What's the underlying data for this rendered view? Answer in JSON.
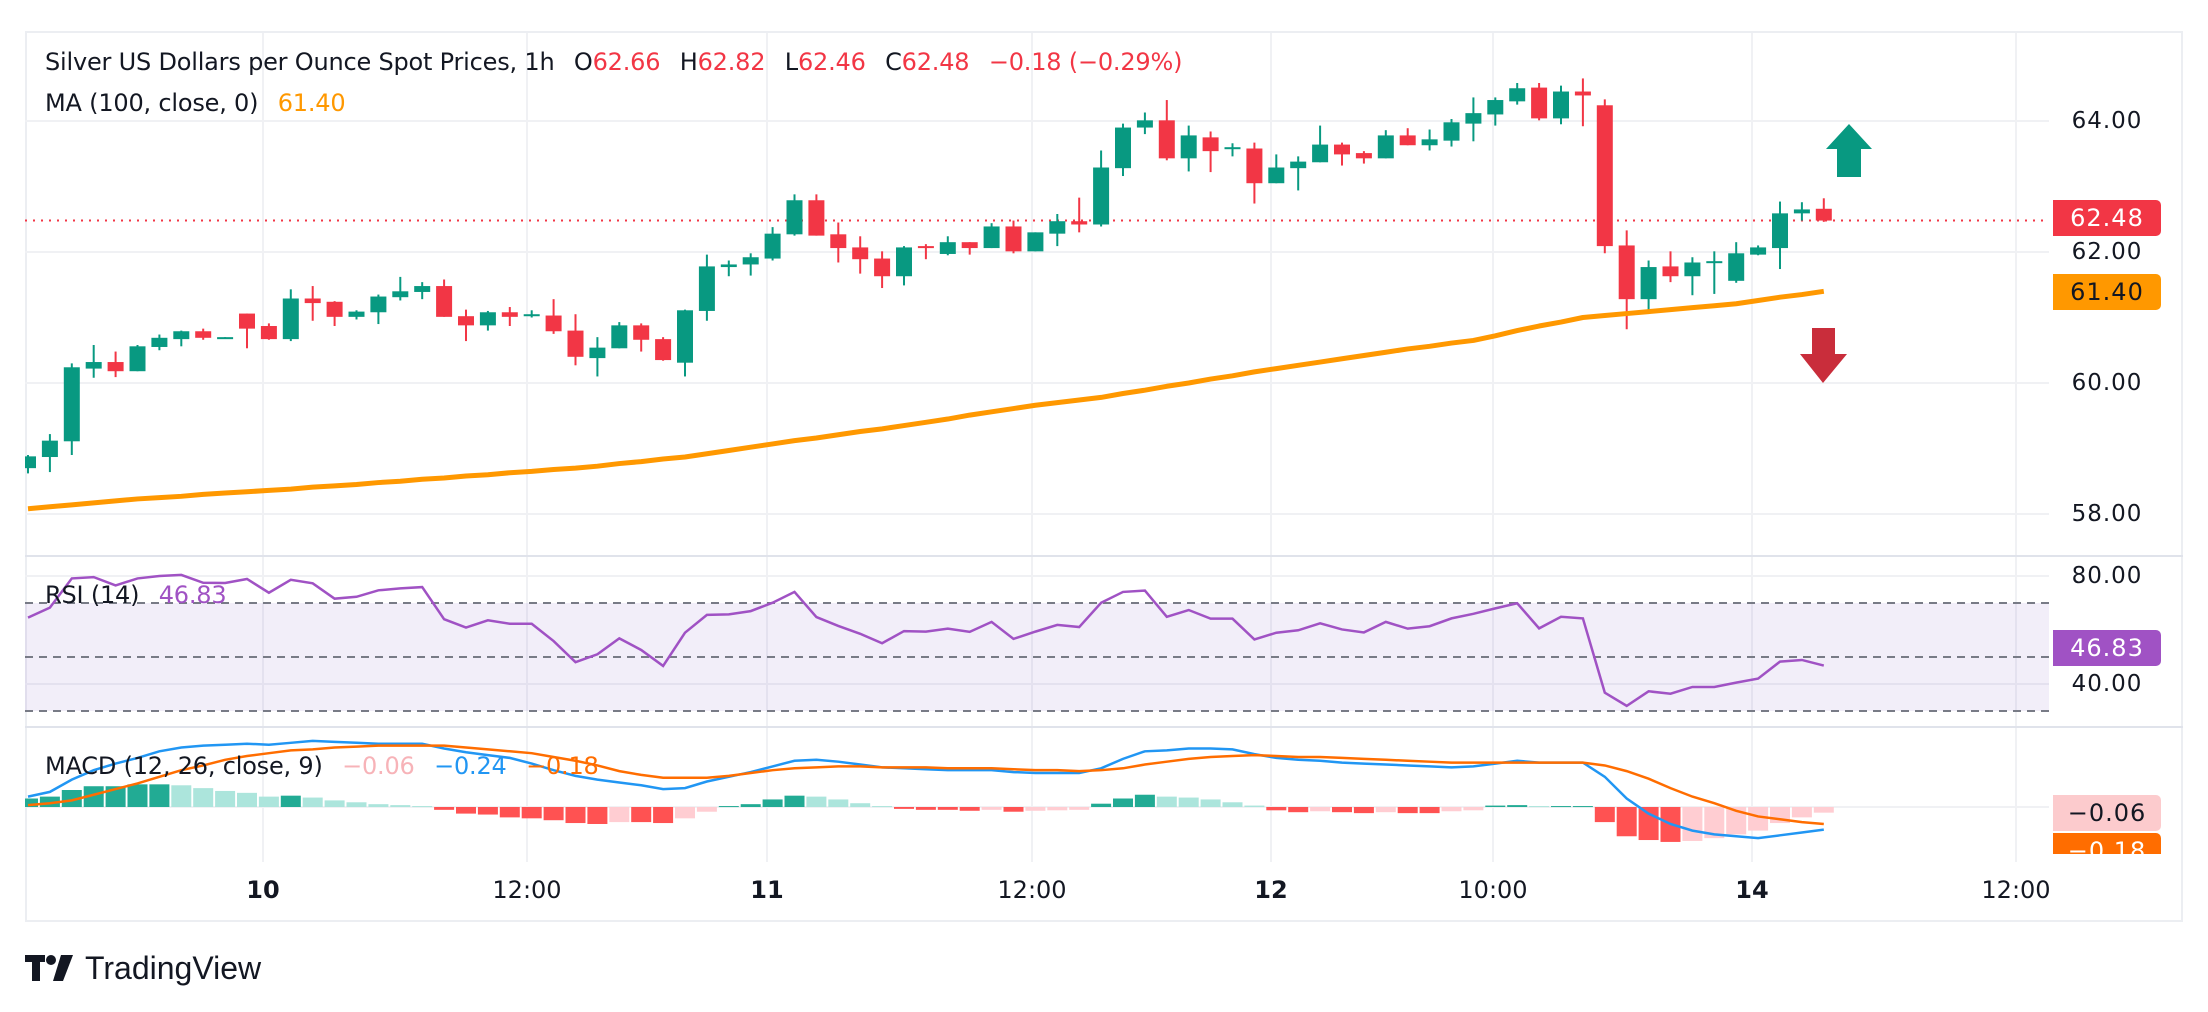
{
  "header": {
    "title": "Silver US Dollars per Ounce Spot Prices, 1h",
    "o_label": "O",
    "o": "62.66",
    "h_label": "H",
    "h": "62.82",
    "l_label": "L",
    "l": "62.46",
    "c_label": "C",
    "c": "62.48",
    "change": "−0.18 (−0.29%)"
  },
  "ma_legend": {
    "label": "MA (100, close, 0)",
    "value": "61.40"
  },
  "rsi_legend": {
    "label": "RSI (14)",
    "value": "46.83"
  },
  "macd_legend": {
    "label": "MACD (12, 26, close, 9)",
    "hist": "−0.06",
    "macd": "−0.24",
    "signal": "−0.18"
  },
  "price_axis": {
    "ticks": [
      "64.00",
      "62.00",
      "60.00",
      "58.00"
    ],
    "last_price": "62.48",
    "ma_value": "61.40"
  },
  "rsi_axis": {
    "ticks": [
      "80.00",
      "40.00"
    ],
    "value": "46.83"
  },
  "macd_axis": {
    "hist_value": "−0.06",
    "signal_value": "−0.18"
  },
  "time_axis": {
    "labels": [
      "10",
      "12:00",
      "11",
      "12:00",
      "12",
      "10:00",
      "14",
      "12:00"
    ]
  },
  "logo": {
    "text": "TradingView"
  },
  "icons": {
    "up_arrow": "up-arrow-icon",
    "down_arrow": "down-arrow-icon"
  },
  "colors": {
    "up": "#089981",
    "down": "#f23645",
    "ma": "#ff9800",
    "rsi": "#a052c4",
    "macd": "#2196f3",
    "signal": "#ff6d00",
    "hist_up_strong": "#22ab94",
    "hist_up_weak": "#ace5dc",
    "hist_down_strong": "#ff5252",
    "hist_down_weak": "#ffcdd2",
    "arrow_up": "#089981",
    "arrow_down": "#c92d3b"
  },
  "chart_data": [
    {
      "type": "candlestick",
      "title": "Silver US Dollars per Ounce Spot Prices, 1h",
      "ylim": [
        57.4,
        65.6
      ],
      "yticks": [
        64,
        62,
        60,
        58
      ],
      "grid": true,
      "ohlc": [
        [
          58.7,
          58.9,
          58.62,
          58.88
        ],
        [
          58.87,
          59.22,
          58.64,
          59.12
        ],
        [
          59.11,
          60.3,
          58.9,
          60.24
        ],
        [
          60.22,
          60.58,
          60.08,
          60.32
        ],
        [
          60.32,
          60.48,
          60.09,
          60.18
        ],
        [
          60.18,
          60.58,
          60.18,
          60.56
        ],
        [
          60.55,
          60.74,
          60.5,
          60.69
        ],
        [
          60.67,
          60.8,
          60.56,
          60.79
        ],
        [
          60.79,
          60.83,
          60.66,
          60.69
        ],
        [
          60.69,
          60.7,
          60.68,
          60.7
        ],
        [
          61.06,
          61.06,
          60.53,
          60.83
        ],
        [
          60.87,
          60.91,
          60.66,
          60.67
        ],
        [
          60.67,
          61.43,
          60.64,
          61.29
        ],
        [
          61.29,
          61.48,
          60.95,
          61.22
        ],
        [
          61.24,
          61.25,
          60.87,
          61.01
        ],
        [
          61.01,
          61.11,
          60.97,
          61.09
        ],
        [
          61.08,
          61.35,
          60.9,
          61.32
        ],
        [
          61.31,
          61.62,
          61.26,
          61.4
        ],
        [
          61.39,
          61.54,
          61.28,
          61.48
        ],
        [
          61.48,
          61.58,
          61.01,
          61.01
        ],
        [
          61.02,
          61.12,
          60.64,
          60.88
        ],
        [
          60.88,
          61.1,
          60.8,
          61.08
        ],
        [
          61.08,
          61.16,
          60.87,
          61.01
        ],
        [
          61.03,
          61.11,
          61.0,
          61.05
        ],
        [
          61.03,
          61.28,
          60.75,
          60.79
        ],
        [
          60.8,
          61.05,
          60.27,
          60.4
        ],
        [
          60.38,
          60.7,
          60.1,
          60.54
        ],
        [
          60.53,
          60.93,
          60.53,
          60.88
        ],
        [
          60.88,
          60.91,
          60.48,
          60.66
        ],
        [
          60.67,
          60.7,
          60.34,
          60.35
        ],
        [
          60.31,
          61.12,
          60.1,
          61.11
        ],
        [
          61.1,
          61.96,
          60.95,
          61.78
        ],
        [
          61.77,
          61.87,
          61.63,
          61.81
        ],
        [
          61.81,
          61.98,
          61.64,
          61.92
        ],
        [
          61.9,
          62.38,
          61.87,
          62.28
        ],
        [
          62.27,
          62.88,
          62.25,
          62.79
        ],
        [
          62.79,
          62.88,
          62.25,
          62.25
        ],
        [
          62.27,
          62.45,
          61.84,
          62.06
        ],
        [
          62.07,
          62.24,
          61.67,
          61.89
        ],
        [
          61.9,
          62.01,
          61.45,
          61.63
        ],
        [
          61.63,
          62.09,
          61.49,
          62.07
        ],
        [
          62.09,
          62.12,
          61.89,
          62.06
        ],
        [
          61.97,
          62.24,
          61.95,
          62.15
        ],
        [
          62.15,
          62.15,
          61.96,
          62.06
        ],
        [
          62.06,
          62.44,
          62.06,
          62.39
        ],
        [
          62.39,
          62.48,
          61.98,
          62.01
        ],
        [
          62.01,
          62.3,
          62.01,
          62.3
        ],
        [
          62.28,
          62.58,
          62.09,
          62.47
        ],
        [
          62.47,
          62.83,
          62.3,
          62.42
        ],
        [
          62.42,
          63.55,
          62.39,
          63.29
        ],
        [
          63.28,
          63.96,
          63.16,
          63.9
        ],
        [
          63.9,
          64.13,
          63.8,
          64.01
        ],
        [
          64.01,
          64.32,
          63.4,
          63.43
        ],
        [
          63.43,
          63.93,
          63.23,
          63.78
        ],
        [
          63.75,
          63.84,
          63.22,
          63.54
        ],
        [
          63.58,
          63.66,
          63.46,
          63.6
        ],
        [
          63.58,
          63.67,
          62.74,
          63.05
        ],
        [
          63.05,
          63.49,
          63.05,
          63.29
        ],
        [
          63.28,
          63.46,
          62.94,
          63.38
        ],
        [
          63.37,
          63.93,
          63.37,
          63.64
        ],
        [
          63.64,
          63.67,
          63.32,
          63.49
        ],
        [
          63.51,
          63.54,
          63.35,
          63.43
        ],
        [
          63.43,
          63.86,
          63.43,
          63.78
        ],
        [
          63.78,
          63.89,
          63.63,
          63.63
        ],
        [
          63.63,
          63.87,
          63.55,
          63.72
        ],
        [
          63.7,
          64.03,
          63.61,
          63.98
        ],
        [
          63.96,
          64.36,
          63.69,
          64.12
        ],
        [
          64.1,
          64.36,
          63.93,
          64.32
        ],
        [
          64.3,
          64.58,
          64.25,
          64.5
        ],
        [
          64.51,
          64.58,
          64.01,
          64.04
        ],
        [
          64.04,
          64.54,
          63.95,
          64.45
        ],
        [
          64.45,
          64.65,
          63.92,
          64.39
        ],
        [
          64.24,
          64.33,
          61.98,
          62.09
        ],
        [
          62.1,
          62.33,
          60.82,
          61.28
        ],
        [
          61.28,
          61.87,
          61.07,
          61.77
        ],
        [
          61.78,
          62.01,
          61.54,
          61.63
        ],
        [
          61.63,
          61.92,
          61.34,
          61.84
        ],
        [
          61.85,
          62.01,
          61.36,
          61.86
        ],
        [
          61.56,
          62.15,
          61.53,
          61.98
        ],
        [
          61.96,
          62.1,
          61.95,
          62.07
        ],
        [
          62.06,
          62.77,
          61.74,
          62.59
        ],
        [
          62.59,
          62.76,
          62.48,
          62.65
        ],
        [
          62.66,
          62.82,
          62.46,
          62.48
        ]
      ],
      "ma100": [
        58.08,
        58.11,
        58.14,
        58.17,
        58.2,
        58.23,
        58.25,
        58.27,
        58.3,
        58.32,
        58.34,
        58.36,
        58.38,
        58.41,
        58.43,
        58.45,
        58.48,
        58.5,
        58.53,
        58.55,
        58.58,
        58.6,
        58.63,
        58.65,
        58.68,
        58.7,
        58.73,
        58.77,
        58.8,
        58.84,
        58.87,
        58.92,
        58.97,
        59.02,
        59.07,
        59.12,
        59.16,
        59.21,
        59.26,
        59.3,
        59.35,
        59.4,
        59.45,
        59.51,
        59.56,
        59.61,
        59.66,
        59.7,
        59.74,
        59.78,
        59.84,
        59.89,
        59.95,
        60.0,
        60.06,
        60.11,
        60.17,
        60.22,
        60.27,
        60.32,
        60.37,
        60.42,
        60.47,
        60.52,
        60.56,
        60.61,
        60.65,
        60.72,
        60.8,
        60.87,
        60.93,
        61.0,
        61.03,
        61.06,
        61.09,
        61.12,
        61.15,
        61.18,
        61.21,
        61.26,
        61.31,
        61.35,
        61.4
      ],
      "last_price": 62.48
    },
    {
      "type": "line",
      "title": "RSI (14)",
      "ylim": [
        25,
        87
      ],
      "yticks": [
        80,
        40
      ],
      "bands": [
        70,
        50,
        30
      ],
      "values": [
        64.6,
        68.3,
        79.1,
        79.6,
        76.5,
        79.1,
        80.0,
        80.4,
        77.5,
        77.4,
        78.9,
        73.8,
        78.6,
        77.3,
        71.6,
        72.3,
        74.7,
        75.4,
        75.9,
        64.0,
        60.9,
        63.6,
        62.3,
        62.3,
        55.9,
        48.1,
        51.0,
        56.9,
        52.6,
        46.7,
        59.0,
        65.6,
        65.8,
        67.0,
        70.1,
        74.1,
        64.8,
        61.5,
        58.6,
        55.1,
        59.6,
        59.4,
        60.5,
        59.3,
        63.0,
        56.7,
        59.4,
        61.9,
        61.1,
        70.1,
        74.1,
        74.6,
        64.9,
        67.4,
        64.2,
        64.2,
        56.5,
        59.0,
        59.9,
        62.5,
        60.2,
        59.1,
        63.0,
        60.5,
        61.4,
        64.3,
        66.0,
        68.0,
        69.9,
        60.6,
        64.9,
        64.3,
        36.8,
        31.9,
        37.3,
        36.4,
        38.9,
        38.9,
        40.5,
        42.0,
        48.3,
        48.9,
        46.83
      ]
    },
    {
      "type": "bar",
      "title": "MACD (12, 26, close, 9)",
      "series": [
        {
          "name": "histogram",
          "values": [
            0.09,
            0.11,
            0.18,
            0.22,
            0.22,
            0.24,
            0.24,
            0.23,
            0.2,
            0.17,
            0.15,
            0.11,
            0.12,
            0.1,
            0.07,
            0.05,
            0.03,
            0.02,
            0.01,
            -0.03,
            -0.07,
            -0.08,
            -0.11,
            -0.12,
            -0.14,
            -0.17,
            -0.18,
            -0.16,
            -0.16,
            -0.17,
            -0.12,
            -0.05,
            0.01,
            0.03,
            0.08,
            0.12,
            0.11,
            0.08,
            0.04,
            0.01,
            -0.02,
            -0.03,
            -0.03,
            -0.04,
            -0.03,
            -0.05,
            -0.04,
            -0.035,
            -0.03,
            0.035,
            0.09,
            0.13,
            0.11,
            0.1,
            0.08,
            0.05,
            0.015,
            -0.035,
            -0.055,
            -0.045,
            -0.055,
            -0.065,
            -0.055,
            -0.065,
            -0.065,
            -0.045,
            -0.035,
            0.015,
            0.02,
            0.01,
            0.01,
            0.01,
            -0.16,
            -0.31,
            -0.35,
            -0.37,
            -0.36,
            -0.33,
            -0.29,
            -0.25,
            -0.17,
            -0.11,
            -0.06
          ]
        },
        {
          "name": "macd",
          "values": [
            0.11,
            0.16,
            0.29,
            0.39,
            0.46,
            0.52,
            0.59,
            0.63,
            0.65,
            0.66,
            0.67,
            0.66,
            0.68,
            0.7,
            0.69,
            0.68,
            0.67,
            0.67,
            0.67,
            0.62,
            0.58,
            0.55,
            0.52,
            0.46,
            0.39,
            0.33,
            0.29,
            0.26,
            0.23,
            0.19,
            0.2,
            0.27,
            0.32,
            0.37,
            0.43,
            0.49,
            0.5,
            0.48,
            0.45,
            0.42,
            0.41,
            0.4,
            0.39,
            0.39,
            0.39,
            0.37,
            0.36,
            0.36,
            0.36,
            0.41,
            0.51,
            0.59,
            0.6,
            0.62,
            0.62,
            0.61,
            0.56,
            0.52,
            0.5,
            0.49,
            0.47,
            0.46,
            0.45,
            0.44,
            0.43,
            0.42,
            0.43,
            0.46,
            0.49,
            0.47,
            0.47,
            0.47,
            0.32,
            0.09,
            -0.07,
            -0.18,
            -0.25,
            -0.29,
            -0.31,
            -0.33,
            -0.3,
            -0.27,
            -0.24
          ]
        },
        {
          "name": "signal",
          "values": [
            0.02,
            0.04,
            0.07,
            0.13,
            0.19,
            0.25,
            0.32,
            0.39,
            0.44,
            0.5,
            0.54,
            0.57,
            0.6,
            0.61,
            0.63,
            0.64,
            0.65,
            0.65,
            0.65,
            0.65,
            0.63,
            0.61,
            0.59,
            0.57,
            0.53,
            0.49,
            0.44,
            0.38,
            0.34,
            0.31,
            0.31,
            0.31,
            0.33,
            0.36,
            0.39,
            0.41,
            0.42,
            0.43,
            0.43,
            0.42,
            0.42,
            0.42,
            0.41,
            0.41,
            0.41,
            0.4,
            0.39,
            0.39,
            0.38,
            0.39,
            0.41,
            0.45,
            0.48,
            0.51,
            0.53,
            0.54,
            0.55,
            0.54,
            0.53,
            0.53,
            0.52,
            0.51,
            0.5,
            0.49,
            0.48,
            0.47,
            0.47,
            0.47,
            0.47,
            0.47,
            0.47,
            0.47,
            0.44,
            0.38,
            0.3,
            0.2,
            0.11,
            0.04,
            -0.04,
            -0.1,
            -0.13,
            -0.16,
            -0.18
          ]
        }
      ]
    }
  ]
}
